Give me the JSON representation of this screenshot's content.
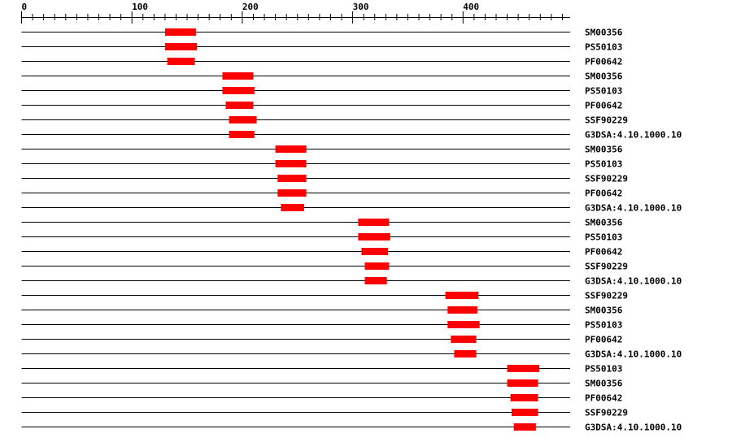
{
  "axis": {
    "min": 0,
    "max": 497,
    "major_ticks": [
      0,
      100,
      200,
      300,
      400
    ],
    "minor_step": 10,
    "minor_max": 490
  },
  "colors": {
    "domain": "#ff0000",
    "line": "#000000"
  },
  "tracks": [
    {
      "label": "SM00356",
      "start": 130,
      "end": 158
    },
    {
      "label": "PS50103",
      "start": 130,
      "end": 159
    },
    {
      "label": "PF00642",
      "start": 132,
      "end": 157
    },
    {
      "label": "SM00356",
      "start": 182,
      "end": 210
    },
    {
      "label": "PS50103",
      "start": 182,
      "end": 211
    },
    {
      "label": "PF00642",
      "start": 185,
      "end": 210
    },
    {
      "label": "SSF90229",
      "start": 188,
      "end": 213
    },
    {
      "label": "G3DSA:4.10.1000.10",
      "start": 188,
      "end": 211
    },
    {
      "label": "SM00356",
      "start": 230,
      "end": 258
    },
    {
      "label": "PS50103",
      "start": 230,
      "end": 258
    },
    {
      "label": "SSF90229",
      "start": 232,
      "end": 258
    },
    {
      "label": "PF00642",
      "start": 232,
      "end": 258
    },
    {
      "label": "G3DSA:4.10.1000.10",
      "start": 235,
      "end": 256
    },
    {
      "label": "SM00356",
      "start": 305,
      "end": 333
    },
    {
      "label": "PS50103",
      "start": 305,
      "end": 334
    },
    {
      "label": "PF00642",
      "start": 308,
      "end": 332
    },
    {
      "label": "SSF90229",
      "start": 311,
      "end": 333
    },
    {
      "label": "G3DSA:4.10.1000.10",
      "start": 311,
      "end": 331
    },
    {
      "label": "SSF90229",
      "start": 384,
      "end": 414
    },
    {
      "label": "SM00356",
      "start": 386,
      "end": 413
    },
    {
      "label": "PS50103",
      "start": 386,
      "end": 415
    },
    {
      "label": "PF00642",
      "start": 389,
      "end": 412
    },
    {
      "label": "G3DSA:4.10.1000.10",
      "start": 392,
      "end": 412
    },
    {
      "label": "PS50103",
      "start": 440,
      "end": 469
    },
    {
      "label": "SM00356",
      "start": 440,
      "end": 468
    },
    {
      "label": "PF00642",
      "start": 443,
      "end": 468
    },
    {
      "label": "SSF90229",
      "start": 444,
      "end": 468
    },
    {
      "label": "G3DSA:4.10.1000.10",
      "start": 446,
      "end": 466
    }
  ]
}
